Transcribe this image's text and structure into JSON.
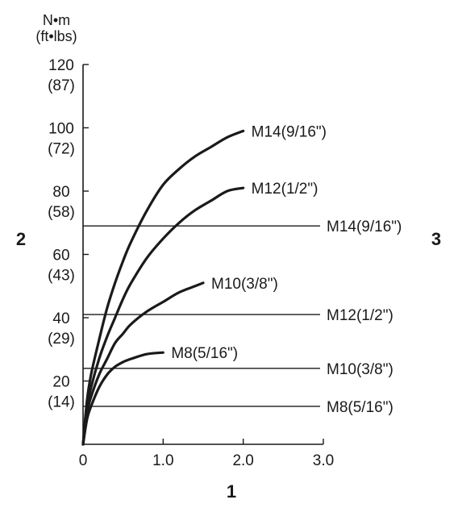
{
  "chart_data": {
    "type": "line",
    "unit_label_primary": "N•m",
    "unit_label_secondary": "(ft•lbs)",
    "callout_y_axis": "2",
    "callout_x_axis": "1",
    "callout_right": "3",
    "xlim": [
      0,
      3.0
    ],
    "ylim": [
      0,
      120
    ],
    "x_ticks": [
      {
        "value": 0,
        "label": "0"
      },
      {
        "value": 1.0,
        "label": "1.0"
      },
      {
        "value": 2.0,
        "label": "2.0"
      },
      {
        "value": 3.0,
        "label": "3.0"
      }
    ],
    "y_ticks": [
      {
        "value": 20,
        "label": "20",
        "secondary": "(14)"
      },
      {
        "value": 40,
        "label": "40",
        "secondary": "(29)"
      },
      {
        "value": 60,
        "label": "60",
        "secondary": "(43)"
      },
      {
        "value": 80,
        "label": "80",
        "secondary": "(58)"
      },
      {
        "value": 100,
        "label": "100",
        "secondary": "(72)"
      },
      {
        "value": 120,
        "label": "120",
        "secondary": "(87)"
      }
    ],
    "curves": [
      {
        "name": "M14(9/16\")",
        "x": [
          0,
          0.05,
          0.1,
          0.2,
          0.3,
          0.4,
          0.5,
          0.6,
          0.8,
          1.0,
          1.2,
          1.4,
          1.6,
          1.8,
          2.0
        ],
        "y": [
          0,
          14,
          22,
          33,
          43,
          51,
          58,
          64,
          74,
          82,
          87,
          91,
          94,
          97,
          99
        ]
      },
      {
        "name": "M12(1/2\")",
        "x": [
          0,
          0.05,
          0.1,
          0.2,
          0.3,
          0.4,
          0.5,
          0.6,
          0.8,
          1.0,
          1.2,
          1.4,
          1.6,
          1.8,
          2.0
        ],
        "y": [
          0,
          12,
          18,
          27,
          34,
          40,
          46,
          51,
          59,
          65,
          70,
          74,
          77,
          80,
          81
        ]
      },
      {
        "name": "M10(3/8\")",
        "x": [
          0,
          0.05,
          0.1,
          0.2,
          0.3,
          0.4,
          0.5,
          0.6,
          0.8,
          1.0,
          1.2,
          1.4,
          1.5
        ],
        "y": [
          0,
          10,
          15,
          22,
          27,
          32,
          35,
          38,
          42,
          45,
          48,
          50,
          51
        ]
      },
      {
        "name": "M8(5/16\")",
        "x": [
          0,
          0.05,
          0.1,
          0.2,
          0.3,
          0.4,
          0.5,
          0.6,
          0.8,
          1.0
        ],
        "y": [
          0,
          8,
          12,
          18,
          22,
          24.5,
          26,
          27,
          28.5,
          29
        ]
      }
    ],
    "thresholds": [
      {
        "name": "M14(9/16\")",
        "y": 69
      },
      {
        "name": "M12(1/2\")",
        "y": 41
      },
      {
        "name": "M10(3/8\")",
        "y": 24
      },
      {
        "name": "M8(5/16\")",
        "y": 12
      }
    ],
    "grid": false
  }
}
